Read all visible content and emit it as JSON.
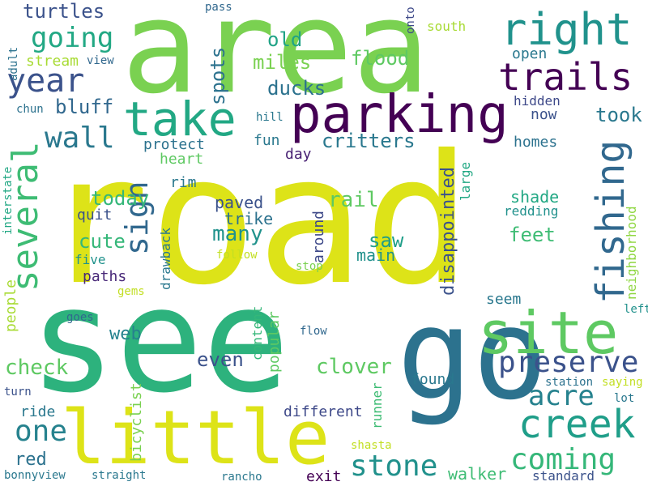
{
  "words": [
    {
      "text": "area",
      "color": "#7ad151"
    },
    {
      "text": "road",
      "color": "#dde318"
    },
    {
      "text": "see",
      "color": "#2db27d"
    },
    {
      "text": "go",
      "color": "#2c728e"
    },
    {
      "text": "parking",
      "color": "#440154"
    },
    {
      "text": "site",
      "color": "#5ec962"
    },
    {
      "text": "little",
      "color": "#dde318"
    },
    {
      "text": "take",
      "color": "#22a884"
    },
    {
      "text": "right",
      "color": "#20928c"
    },
    {
      "text": "trails",
      "color": "#440154"
    },
    {
      "text": "year",
      "color": "#3b528b"
    },
    {
      "text": "fishing",
      "color": "#31688e"
    },
    {
      "text": "creek",
      "color": "#1f9e89"
    },
    {
      "text": "several",
      "color": "#3ebc74"
    },
    {
      "text": "sign",
      "color": "#31688e"
    },
    {
      "text": "preserve",
      "color": "#3b528b"
    },
    {
      "text": "coming",
      "color": "#35b779"
    },
    {
      "text": "stone",
      "color": "#21918c"
    },
    {
      "text": "acre",
      "color": "#26828e"
    },
    {
      "text": "one",
      "color": "#26828e"
    },
    {
      "text": "going",
      "color": "#22a884"
    },
    {
      "text": "wall",
      "color": "#2a788e"
    },
    {
      "text": "turtles",
      "color": "#3b528b"
    },
    {
      "text": "flood",
      "color": "#5ec962"
    },
    {
      "text": "old",
      "color": "#20a386"
    },
    {
      "text": "miles",
      "color": "#7ad151"
    },
    {
      "text": "ducks",
      "color": "#2c728e"
    },
    {
      "text": "spots",
      "color": "#2c728e"
    },
    {
      "text": "bluff",
      "color": "#31688e"
    },
    {
      "text": "took",
      "color": "#2a788e"
    },
    {
      "text": "critters",
      "color": "#2a788e"
    },
    {
      "text": "fun",
      "color": "#2a788e"
    },
    {
      "text": "day",
      "color": "#482173"
    },
    {
      "text": "protect",
      "color": "#2c728e"
    },
    {
      "text": "heart",
      "color": "#5ec962"
    },
    {
      "text": "disappointed",
      "color": "#3b528b"
    },
    {
      "text": "rail",
      "color": "#5ec962"
    },
    {
      "text": "today",
      "color": "#35b779"
    },
    {
      "text": "cute",
      "color": "#35b779"
    },
    {
      "text": "many",
      "color": "#20928c"
    },
    {
      "text": "paved",
      "color": "#3b528b"
    },
    {
      "text": "trike",
      "color": "#2c728e"
    },
    {
      "text": "saw",
      "color": "#1f9e89"
    },
    {
      "text": "main",
      "color": "#21918c"
    },
    {
      "text": "feet",
      "color": "#3ebc74"
    },
    {
      "text": "shade",
      "color": "#22a884"
    },
    {
      "text": "redding",
      "color": "#21918c"
    },
    {
      "text": "neighborhood",
      "color": "#90d743"
    },
    {
      "text": "homes",
      "color": "#2c728e"
    },
    {
      "text": "now",
      "color": "#3b528b"
    },
    {
      "text": "hidden",
      "color": "#3e4989"
    },
    {
      "text": "open",
      "color": "#2a788e"
    },
    {
      "text": "south",
      "color": "#a8db34"
    },
    {
      "text": "onto",
      "color": "#3e4989"
    },
    {
      "text": "pass",
      "color": "#31688e"
    },
    {
      "text": "stream",
      "color": "#a8db34"
    },
    {
      "text": "view",
      "color": "#31688e"
    },
    {
      "text": "adult",
      "color": "#2c728e"
    },
    {
      "text": "chun",
      "color": "#2c728e"
    },
    {
      "text": "hill",
      "color": "#2a788e"
    },
    {
      "text": "large",
      "color": "#22a884"
    },
    {
      "text": "rim",
      "color": "#2a788e"
    },
    {
      "text": "quit",
      "color": "#3b528b"
    },
    {
      "text": "five",
      "color": "#20928c"
    },
    {
      "text": "paths",
      "color": "#482878"
    },
    {
      "text": "gems",
      "color": "#c2df23"
    },
    {
      "text": "drawback",
      "color": "#2a788e"
    },
    {
      "text": "follow",
      "color": "#c2df23"
    },
    {
      "text": "around",
      "color": "#3e4989"
    },
    {
      "text": "stop",
      "color": "#7ad151"
    },
    {
      "text": "interstate",
      "color": "#22a884"
    },
    {
      "text": "people",
      "color": "#a8db34"
    },
    {
      "text": "goes",
      "color": "#31688e"
    },
    {
      "text": "web",
      "color": "#26828e"
    },
    {
      "text": "content",
      "color": "#35b779"
    },
    {
      "text": "popular",
      "color": "#5ec962"
    },
    {
      "text": "flow",
      "color": "#31688e"
    },
    {
      "text": "seem",
      "color": "#2a788e"
    },
    {
      "text": "left",
      "color": "#21918c"
    },
    {
      "text": "check",
      "color": "#5ec962"
    },
    {
      "text": "even",
      "color": "#3b528b"
    },
    {
      "text": "clover",
      "color": "#5ec962"
    },
    {
      "text": "found",
      "color": "#2a788e"
    },
    {
      "text": "station",
      "color": "#2c728e"
    },
    {
      "text": "saying",
      "color": "#c2df23"
    },
    {
      "text": "lot",
      "color": "#2a788e"
    },
    {
      "text": "turn",
      "color": "#3b528b"
    },
    {
      "text": "ride",
      "color": "#2a788e"
    },
    {
      "text": "bicyclist",
      "color": "#7ad151"
    },
    {
      "text": "different",
      "color": "#3e4989"
    },
    {
      "text": "runner",
      "color": "#3ebc74"
    },
    {
      "text": "red",
      "color": "#2c728e"
    },
    {
      "text": "shasta",
      "color": "#c2df23"
    },
    {
      "text": "walker",
      "color": "#3ebc74"
    },
    {
      "text": "standard",
      "color": "#3b528b"
    },
    {
      "text": "exit",
      "color": "#440154"
    },
    {
      "text": "rancho",
      "color": "#2a788e"
    },
    {
      "text": "straight",
      "color": "#2a788e"
    },
    {
      "text": "bonnyview",
      "color": "#2a788e"
    }
  ]
}
